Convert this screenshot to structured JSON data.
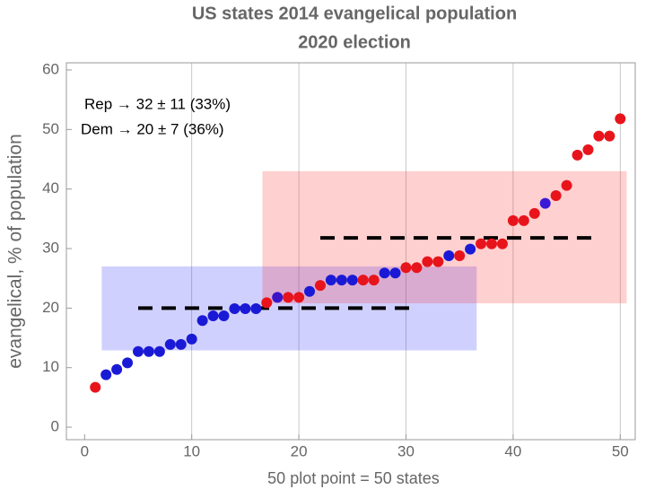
{
  "chart_data": {
    "type": "scatter",
    "title": "US states 2014 evangelical population",
    "subtitle": "2020 election",
    "x_label": "50 plot point = 50 states",
    "y_label": "evangelical, % of population",
    "annotations": [
      "Rep → 32 ± 11 (33%)",
      "Dem → 20 ± 7 (36%)"
    ],
    "x": [
      1,
      2,
      3,
      4,
      5,
      6,
      7,
      8,
      9,
      10,
      11,
      12,
      13,
      14,
      15,
      16,
      17,
      18,
      19,
      20,
      21,
      22,
      23,
      24,
      25,
      26,
      27,
      28,
      29,
      30,
      31,
      32,
      33,
      34,
      35,
      36,
      37,
      38,
      39,
      40,
      41,
      42,
      43,
      44,
      45,
      46,
      47,
      48,
      49,
      50
    ],
    "values": [
      6.7,
      8.8,
      9.7,
      10.8,
      12.7,
      12.7,
      12.7,
      13.9,
      13.9,
      14.8,
      17.9,
      18.7,
      18.7,
      19.9,
      19.9,
      19.9,
      20.9,
      21.8,
      21.8,
      21.8,
      22.8,
      23.8,
      24.7,
      24.7,
      24.7,
      24.7,
      24.7,
      25.9,
      25.9,
      26.8,
      26.8,
      27.8,
      27.8,
      28.8,
      28.8,
      29.9,
      30.8,
      30.8,
      30.8,
      34.7,
      34.7,
      35.9,
      37.6,
      38.9,
      40.6,
      45.7,
      46.6,
      48.9,
      48.9,
      51.8
    ],
    "point_colors": [
      "#e8141c",
      "#1a1ad6",
      "#1a1ad6",
      "#1a1ad6",
      "#1a1ad6",
      "#1a1ad6",
      "#1a1ad6",
      "#1a1ad6",
      "#1a1ad6",
      "#1a1ad6",
      "#1a1ad6",
      "#1a1ad6",
      "#1a1ad6",
      "#1a1ad6",
      "#1a1ad6",
      "#1a1ad6",
      "#e8141c",
      "#3a14c8",
      "#e8141c",
      "#e8141c",
      "#1a1ad6",
      "#e8141c",
      "#1a1ad6",
      "#1a1ad6",
      "#1a1ad6",
      "#e8141c",
      "#e8141c",
      "#1a1ad6",
      "#1a1ad6",
      "#e8141c",
      "#e8141c",
      "#e8141c",
      "#e8141c",
      "#1a1ad6",
      "#e8141c",
      "#1a1ad6",
      "#e8141c",
      "#e8141c",
      "#e8141c",
      "#e8141c",
      "#e8141c",
      "#e8141c",
      "#3a1ad6",
      "#e8141c",
      "#e8141c",
      "#e8141c",
      "#e8141c",
      "#e8141c",
      "#e8141c",
      "#e8141c"
    ],
    "bands": [
      {
        "x0": 1.6,
        "x1": 36.6,
        "y0": 12.9,
        "y1": 27,
        "color": "rgba(40,40,255,0.22)"
      },
      {
        "x0": 16.6,
        "x1": 50.6,
        "y0": 20.8,
        "y1": 43,
        "color": "rgba(255,40,40,0.22)"
      }
    ],
    "mean_lines": [
      {
        "x0": 5,
        "x1": 31,
        "y": 20
      },
      {
        "x0": 22,
        "x1": 48,
        "y": 31.8
      }
    ],
    "xlim": [
      -1.7,
      51.4
    ],
    "ylim": [
      -2.1,
      61.2
    ],
    "xticks": [
      0,
      10,
      20,
      30,
      40,
      50
    ],
    "yticks": [
      0,
      10,
      20,
      30,
      40,
      50,
      60
    ],
    "grid": true
  }
}
